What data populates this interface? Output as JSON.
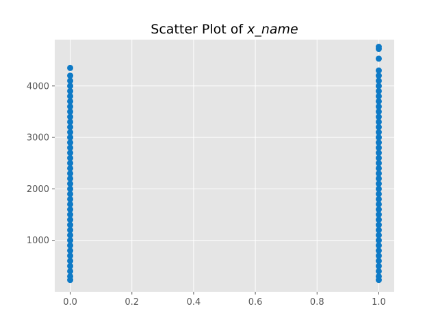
{
  "chart_data": {
    "type": "scatter",
    "title_prefix": "Scatter Plot of ",
    "title_var": "x_name",
    "xlabel": "",
    "ylabel": "",
    "xlim": [
      -0.05,
      1.05
    ],
    "ylim": [
      0,
      4900
    ],
    "x_ticks": [
      0.0,
      0.2,
      0.4,
      0.6,
      0.8,
      1.0
    ],
    "x_tick_labels": [
      "0.0",
      "0.2",
      "0.4",
      "0.6",
      "0.8",
      "1.0"
    ],
    "y_ticks": [
      1000,
      2000,
      3000,
      4000
    ],
    "y_tick_labels": [
      "1000",
      "2000",
      "3000",
      "4000"
    ],
    "grid": true,
    "legend": "none",
    "colors": {
      "background": "#e5e5e5",
      "grid": "#ffffff",
      "marker": "#0e7ac6"
    },
    "series": [
      {
        "x_value": 0.0,
        "y": [
          230,
          300,
          400,
          500,
          600,
          700,
          800,
          900,
          1000,
          1100,
          1200,
          1300,
          1400,
          1500,
          1600,
          1700,
          1800,
          1900,
          2000,
          2100,
          2200,
          2300,
          2400,
          2500,
          2600,
          2700,
          2800,
          2900,
          3000,
          3100,
          3200,
          3300,
          3400,
          3500,
          3600,
          3700,
          3800,
          3900,
          4000,
          4100,
          4200,
          4350
        ]
      },
      {
        "x_value": 1.0,
        "y": [
          230,
          300,
          400,
          500,
          600,
          700,
          800,
          900,
          1000,
          1100,
          1200,
          1300,
          1400,
          1500,
          1600,
          1700,
          1800,
          1900,
          2000,
          2100,
          2200,
          2300,
          2400,
          2500,
          2600,
          2700,
          2800,
          2900,
          3000,
          3100,
          3200,
          3300,
          3400,
          3500,
          3600,
          3700,
          3800,
          3900,
          4000,
          4100,
          4200,
          4300,
          4530,
          4720,
          4760
        ]
      }
    ]
  }
}
